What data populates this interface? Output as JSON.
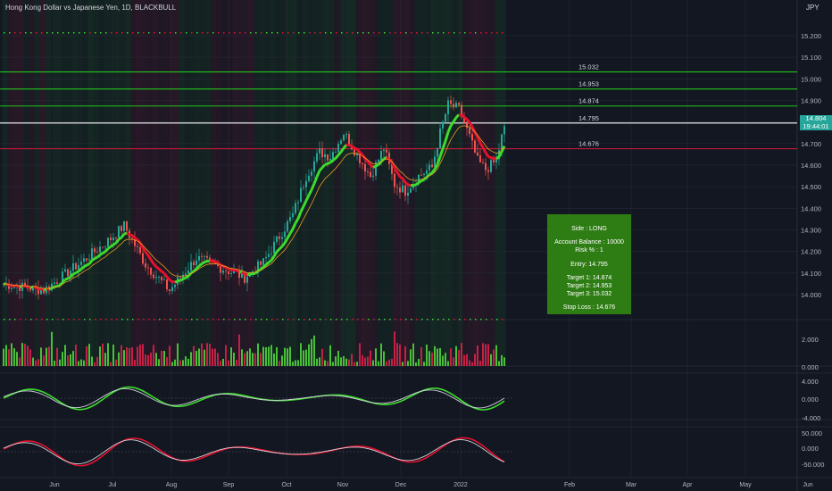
{
  "title": "Hong Kong Dollar vs Japanese Yen, 1D, BLACKBULL",
  "currency": "JPY",
  "chart_data": {
    "type": "line",
    "price_axis_ticks": [
      "15.200",
      "15.100",
      "15.000",
      "14.900",
      "14.800",
      "14.700",
      "14.600",
      "14.500",
      "14.400",
      "14.300",
      "14.200",
      "14.100",
      "14.000"
    ],
    "ylim": [
      13.93,
      15.27
    ],
    "time_axis_ticks": [
      "Jun",
      "Jul",
      "Aug",
      "Sep",
      "Oct",
      "Nov",
      "Dec",
      "2022",
      "Feb",
      "Mar",
      "Apr",
      "May",
      "Jun"
    ],
    "current_price": "14.804",
    "countdown": "19:44:01",
    "levels": [
      {
        "label": "15.032",
        "value": 15.032,
        "color": "#22c31c"
      },
      {
        "label": "14.953",
        "value": 14.953,
        "color": "#22c31c"
      },
      {
        "label": "14.874",
        "value": 14.874,
        "color": "#22c31c"
      },
      {
        "label": "14.795",
        "value": 14.795,
        "color": "#ffffff"
      },
      {
        "label": "14.676",
        "value": 14.676,
        "color": "#d81b3c"
      }
    ],
    "close_anchors": [
      [
        0,
        14.05
      ],
      [
        15,
        14.02
      ],
      [
        30,
        14.16
      ],
      [
        40,
        14.26
      ],
      [
        45,
        14.32
      ],
      [
        53,
        14.14
      ],
      [
        62,
        14.02
      ],
      [
        72,
        14.17
      ],
      [
        82,
        14.12
      ],
      [
        90,
        14.08
      ],
      [
        97,
        14.15
      ],
      [
        102,
        14.25
      ],
      [
        108,
        14.37
      ],
      [
        113,
        14.55
      ],
      [
        118,
        14.66
      ],
      [
        122,
        14.64
      ],
      [
        127,
        14.75
      ],
      [
        133,
        14.63
      ],
      [
        137,
        14.55
      ],
      [
        142,
        14.68
      ],
      [
        146,
        14.51
      ],
      [
        150,
        14.48
      ],
      [
        155,
        14.55
      ],
      [
        160,
        14.59
      ],
      [
        163,
        14.75
      ],
      [
        166,
        14.88
      ],
      [
        170,
        14.86
      ],
      [
        174,
        14.73
      ],
      [
        177,
        14.62
      ],
      [
        180,
        14.58
      ],
      [
        184,
        14.62
      ],
      [
        186,
        14.73
      ],
      [
        188,
        14.804
      ]
    ],
    "volume_panel_ticks": [
      "2.000",
      "0.000"
    ],
    "osc1_ticks": [
      "4.000",
      "0.000",
      "-4.000"
    ],
    "osc2_ticks": [
      "50.000",
      "0.000",
      "-50.000"
    ]
  },
  "signal_box": {
    "side": "Side : LONG",
    "balance": "Account Balance : 10000",
    "risk": "Risk % : 1",
    "entry": "Entry: 14.795",
    "target1": "Target 1: 14.874",
    "target2": "Target 2: 14.953",
    "target3": "Target 3: 15.032",
    "stop": "Stop Loss : 14.676"
  },
  "colors": {
    "bull": "#26a69a",
    "bear": "#ef5350",
    "ribbon_up": "#3ddc2d",
    "ribbon_down": "#e8112d",
    "target_line": "#22c31c",
    "entry_line": "#ffffff",
    "stop_line": "#d81b3c"
  }
}
